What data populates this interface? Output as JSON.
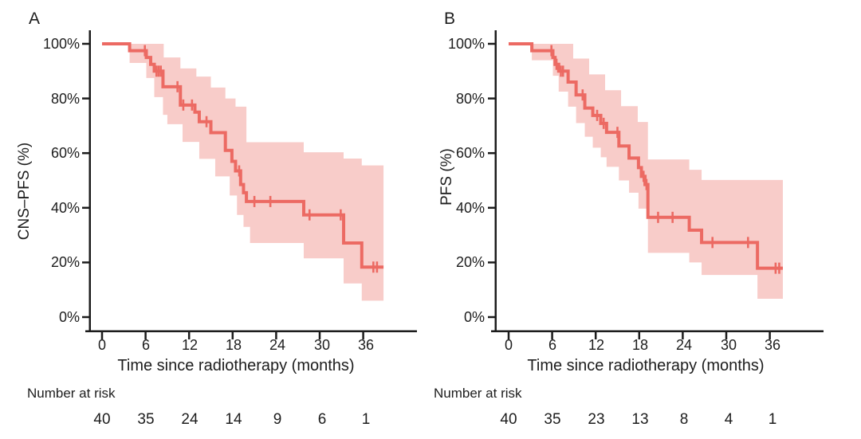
{
  "style": {
    "background": "#ffffff",
    "axis_color": "#1c1c1c",
    "text_color": "#1d1d1d",
    "curve_color": "#ec6a63",
    "band_color": "#f8ccc9"
  },
  "chart_data": [
    {
      "type": "line",
      "subtype": "kaplan-meier-step-curve-with-confidence-band",
      "panel_label": "A",
      "xlabel": "Time since radiotherapy (months)",
      "ylabel": "CNS–PFS (%)",
      "xlim": [
        0,
        40.5
      ],
      "ylim": [
        0,
        100
      ],
      "grid": false,
      "legend": "none",
      "x_ticks": [
        0,
        6,
        12,
        18,
        24,
        30,
        36
      ],
      "x_tick_labels": [
        "0",
        "6",
        "12",
        "18",
        "24",
        "30",
        "36"
      ],
      "y_ticks": [
        100,
        80,
        60,
        40,
        20,
        0
      ],
      "y_tick_labels": [
        "100%",
        "80%",
        "60%",
        "40%",
        "20%",
        "0%"
      ],
      "line_color": "#ec6a63",
      "ci_color": "#f8ccc9",
      "end_time": 38.8,
      "steps": [
        [
          0,
          100
        ],
        [
          3.8,
          97.5
        ],
        [
          6.1,
          95
        ],
        [
          6.7,
          92.5
        ],
        [
          7.2,
          90
        ],
        [
          8.4,
          84.3
        ],
        [
          10.8,
          77.6
        ],
        [
          12.8,
          75
        ],
        [
          13.4,
          71.5
        ],
        [
          15.0,
          67.5
        ],
        [
          17.0,
          61
        ],
        [
          17.9,
          57
        ],
        [
          18.4,
          53.5
        ],
        [
          19.1,
          48.5
        ],
        [
          19.5,
          45.5
        ],
        [
          19.9,
          42.3
        ],
        [
          27.8,
          37.4
        ],
        [
          33.3,
          27.1
        ],
        [
          35.8,
          18.3
        ]
      ],
      "censors": [
        [
          5.9,
          97.5
        ],
        [
          7.5,
          90
        ],
        [
          7.8,
          90
        ],
        [
          8.1,
          90
        ],
        [
          10.4,
          84.3
        ],
        [
          11.2,
          77.6
        ],
        [
          12.4,
          77.6
        ],
        [
          14.4,
          71.5
        ],
        [
          18.9,
          53.5
        ],
        [
          21.0,
          42.3
        ],
        [
          23.2,
          42.3
        ],
        [
          28.6,
          37.4
        ],
        [
          32.9,
          37.4
        ],
        [
          37.4,
          18.3
        ],
        [
          37.9,
          18.3
        ]
      ],
      "ci_upper": [
        [
          3.8,
          100
        ],
        [
          8.5,
          95
        ],
        [
          10.8,
          91
        ],
        [
          13.0,
          88
        ],
        [
          15.0,
          84
        ],
        [
          17.0,
          80
        ],
        [
          18.4,
          77
        ],
        [
          19.9,
          64
        ],
        [
          27.8,
          60.3
        ],
        [
          33.3,
          58
        ],
        [
          35.8,
          55.5
        ]
      ],
      "ci_lower": [
        [
          3.8,
          93
        ],
        [
          6.1,
          87.5
        ],
        [
          7.2,
          80.5
        ],
        [
          8.4,
          74
        ],
        [
          9.0,
          70.6
        ],
        [
          11.1,
          64.1
        ],
        [
          13.4,
          57.9
        ],
        [
          15.6,
          51.5
        ],
        [
          17.6,
          44.5
        ],
        [
          18.6,
          37.4
        ],
        [
          19.5,
          33
        ],
        [
          20.4,
          27.1
        ],
        [
          27.8,
          21.5
        ],
        [
          33.3,
          12.3
        ],
        [
          35.8,
          6.0
        ]
      ],
      "at_risk": {
        "label": "Number at risk",
        "times": [
          0,
          6,
          12,
          18,
          24,
          30,
          36
        ],
        "counts": [
          40,
          35,
          24,
          14,
          9,
          6,
          1
        ]
      }
    },
    {
      "type": "line",
      "subtype": "kaplan-meier-step-curve-with-confidence-band",
      "panel_label": "B",
      "xlabel": "Time since radiotherapy (months)",
      "ylabel": "PFS (%)",
      "xlim": [
        0,
        40.5
      ],
      "ylim": [
        0,
        100
      ],
      "grid": false,
      "legend": "none",
      "x_ticks": [
        0,
        6,
        12,
        18,
        24,
        30,
        36
      ],
      "x_tick_labels": [
        "0",
        "6",
        "12",
        "18",
        "24",
        "30",
        "36"
      ],
      "y_ticks": [
        100,
        80,
        60,
        40,
        20,
        0
      ],
      "y_tick_labels": [
        "100%",
        "80%",
        "60%",
        "40%",
        "20%",
        "0%"
      ],
      "line_color": "#ec6a63",
      "ci_color": "#f8ccc9",
      "end_time": 37.8,
      "steps": [
        [
          0,
          100
        ],
        [
          3.2,
          97.5
        ],
        [
          6.1,
          95
        ],
        [
          6.4,
          92.5
        ],
        [
          6.9,
          90
        ],
        [
          8.2,
          86
        ],
        [
          9.3,
          81.3
        ],
        [
          10.5,
          76.5
        ],
        [
          11.6,
          73.8
        ],
        [
          12.7,
          70.9
        ],
        [
          13.5,
          67.6
        ],
        [
          15.2,
          62.6
        ],
        [
          16.6,
          58.2
        ],
        [
          17.9,
          54.7
        ],
        [
          18.3,
          51.5
        ],
        [
          18.8,
          48.5
        ],
        [
          19.2,
          36.5
        ],
        [
          24.9,
          31.8
        ],
        [
          26.6,
          27.3
        ],
        [
          34.3,
          17.9
        ]
      ],
      "censors": [
        [
          5.9,
          97.5
        ],
        [
          6.6,
          92.5
        ],
        [
          7.2,
          90
        ],
        [
          7.5,
          90
        ],
        [
          10.2,
          81.3
        ],
        [
          12.2,
          73.8
        ],
        [
          13.1,
          70.9
        ],
        [
          15.0,
          67.6
        ],
        [
          18.6,
          51.5
        ],
        [
          19.0,
          48.5
        ],
        [
          20.6,
          36.5
        ],
        [
          22.6,
          36.5
        ],
        [
          28.1,
          27.3
        ],
        [
          33.0,
          27.3
        ],
        [
          36.8,
          17.9
        ],
        [
          37.3,
          17.9
        ]
      ],
      "ci_upper": [
        [
          3.2,
          100
        ],
        [
          8.9,
          94.6
        ],
        [
          11.1,
          88.8
        ],
        [
          13.3,
          83
        ],
        [
          15.5,
          77.2
        ],
        [
          17.8,
          71.4
        ],
        [
          19.2,
          57.7
        ],
        [
          24.9,
          53.9
        ],
        [
          26.6,
          50.2
        ]
      ],
      "ci_lower": [
        [
          3.2,
          94
        ],
        [
          6.1,
          88.3
        ],
        [
          6.9,
          82.5
        ],
        [
          8.2,
          77
        ],
        [
          9.3,
          71
        ],
        [
          10.5,
          66
        ],
        [
          11.6,
          62
        ],
        [
          12.7,
          58.5
        ],
        [
          13.5,
          55
        ],
        [
          15.2,
          50
        ],
        [
          16.6,
          45.5
        ],
        [
          17.9,
          39.7
        ],
        [
          19.2,
          23.5
        ],
        [
          24.9,
          20
        ],
        [
          26.6,
          15.4
        ],
        [
          34.3,
          6.7
        ]
      ],
      "at_risk": {
        "label": "Number at risk",
        "times": [
          0,
          6,
          12,
          18,
          24,
          30,
          36
        ],
        "counts": [
          40,
          35,
          23,
          13,
          8,
          4,
          1
        ]
      }
    }
  ]
}
